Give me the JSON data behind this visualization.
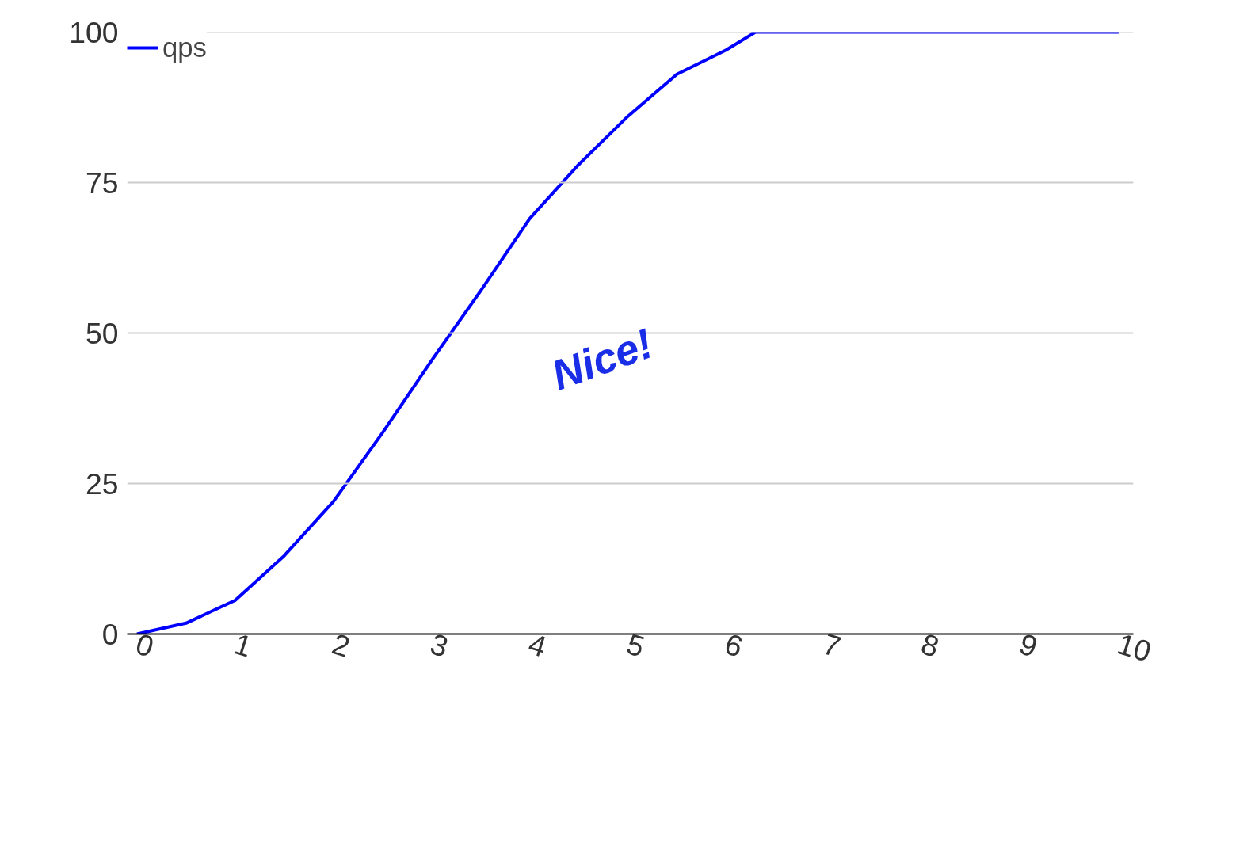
{
  "chart_data": {
    "type": "line",
    "x": [
      0,
      0.5,
      1,
      1.5,
      2,
      2.5,
      3,
      3.5,
      4,
      4.5,
      5,
      5.5,
      6,
      6.3,
      6.5,
      7,
      8,
      9,
      10
    ],
    "series": [
      {
        "name": "qps",
        "color": "#0000ff",
        "values": [
          0,
          1.8,
          5.6,
          13,
          22,
          33.4,
          45.4,
          57,
          69,
          78,
          86,
          93,
          97,
          100,
          100,
          100,
          100,
          100,
          100
        ]
      }
    ],
    "xlim": [
      -0.1,
      10.15
    ],
    "xticks": [
      0,
      1,
      2,
      3,
      4,
      5,
      6,
      7,
      8,
      9,
      10
    ],
    "ylim": [
      0,
      100
    ],
    "yticks": [
      0,
      25,
      50,
      75,
      100
    ],
    "grid": "y",
    "legend": "top left",
    "marker": "none",
    "line_style": "solid",
    "annotations": [
      "Nice!"
    ]
  }
}
